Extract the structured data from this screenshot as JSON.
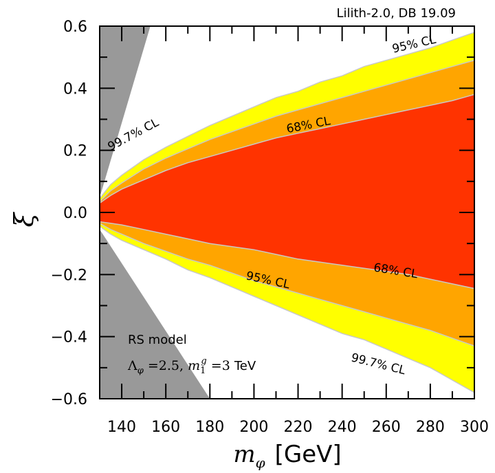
{
  "chart_data": {
    "type": "area",
    "title": "Lilith-2.0, DB 19.09",
    "xlabel": "m_φ [GeV]",
    "xlabel_parts": {
      "symbol": "m",
      "subscript": "φ",
      "unit": "[GeV]"
    },
    "ylabel": "ξ",
    "xlim": [
      130,
      300
    ],
    "ylim": [
      -0.6,
      0.6
    ],
    "xticks": [
      140,
      160,
      180,
      200,
      220,
      240,
      260,
      280,
      300
    ],
    "yticks": [
      0.6,
      0.4,
      0.2,
      0.0,
      -0.2,
      -0.4,
      -0.6
    ],
    "ytick_labels": [
      "0.6",
      "0.4",
      "0.2",
      "0.0",
      "−0.2",
      "−0.4",
      "−0.6"
    ],
    "x": [
      130,
      135,
      140,
      150,
      160,
      170,
      180,
      190,
      200,
      210,
      220,
      230,
      240,
      250,
      260,
      270,
      280,
      290,
      300
    ],
    "series": [
      {
        "name": "99.7% CL",
        "color": "#ffff00",
        "upper": [
          0.045,
          0.09,
          0.12,
          0.17,
          0.21,
          0.245,
          0.28,
          0.31,
          0.34,
          0.37,
          0.39,
          0.42,
          0.44,
          0.47,
          0.49,
          0.51,
          0.53,
          0.555,
          0.58
        ],
        "lower": [
          -0.045,
          -0.07,
          -0.09,
          -0.12,
          -0.15,
          -0.185,
          -0.21,
          -0.24,
          -0.27,
          -0.3,
          -0.33,
          -0.36,
          -0.39,
          -0.41,
          -0.44,
          -0.47,
          -0.5,
          -0.54,
          -0.58
        ]
      },
      {
        "name": "95% CL",
        "color": "#ffa500",
        "upper": [
          0.035,
          0.07,
          0.095,
          0.14,
          0.175,
          0.205,
          0.235,
          0.26,
          0.285,
          0.31,
          0.33,
          0.35,
          0.37,
          0.39,
          0.41,
          0.43,
          0.45,
          0.47,
          0.49
        ],
        "lower": [
          -0.035,
          -0.055,
          -0.07,
          -0.1,
          -0.125,
          -0.15,
          -0.17,
          -0.195,
          -0.22,
          -0.24,
          -0.26,
          -0.28,
          -0.3,
          -0.32,
          -0.34,
          -0.36,
          -0.38,
          -0.405,
          -0.43
        ]
      },
      {
        "name": "68% CL",
        "color": "#ff3300",
        "upper": [
          0.03,
          0.055,
          0.075,
          0.105,
          0.135,
          0.16,
          0.18,
          0.2,
          0.22,
          0.24,
          0.255,
          0.27,
          0.285,
          0.3,
          0.315,
          0.33,
          0.345,
          0.36,
          0.38
        ],
        "lower": [
          -0.03,
          -0.035,
          -0.04,
          -0.055,
          -0.07,
          -0.085,
          -0.1,
          -0.11,
          -0.12,
          -0.135,
          -0.15,
          -0.16,
          -0.17,
          -0.18,
          -0.19,
          -0.2,
          -0.215,
          -0.23,
          -0.245
        ]
      }
    ],
    "band_labels": [
      {
        "text": "95% CL",
        "x": 273,
        "y": 0.53,
        "angle": -13
      },
      {
        "text": "68% CL",
        "x": 225,
        "y": 0.27,
        "angle": -11
      },
      {
        "text": "99.7% CL",
        "x": 146,
        "y": 0.24,
        "angle": -28
      },
      {
        "text": "95% CL",
        "x": 206,
        "y": -0.23,
        "angle": 12
      },
      {
        "text": "68% CL",
        "x": 264,
        "y": -0.2,
        "angle": 9
      },
      {
        "text": "99.7% CL",
        "x": 256,
        "y": -0.5,
        "angle": 14
      }
    ],
    "excluded_region": {
      "color": "#999999",
      "upper_boundary_x_at_top": 153,
      "upper_boundary_x_at_curve_start": 130.5,
      "upper_boundary_y_at_curve_start": 0.06,
      "lower_boundary_x_at_bottom": 180,
      "lower_boundary_x_at_curve_start": 130.5,
      "lower_boundary_y_at_curve_start": -0.06
    },
    "annotations": {
      "model": "RS model",
      "params": {
        "lambda_symbol": "Λ",
        "lambda_sub": "φ",
        "lambda_eq": " =2.5, ",
        "mass_symbol": "m",
        "mass_sub": "1",
        "mass_sup": "g",
        "mass_eq": " =3 ",
        "unit": "TeV"
      }
    }
  }
}
